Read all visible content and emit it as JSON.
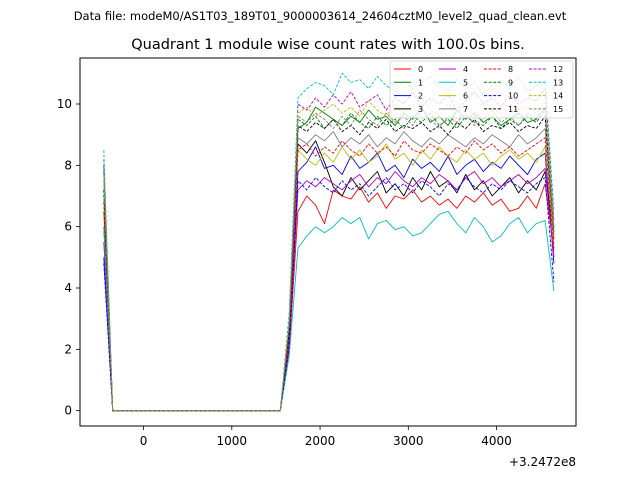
{
  "chart_data": {
    "type": "line",
    "suptitle": "Data file: modeM0/AS1T03_189T01_9000003614_24604cztM0_level2_quad_clean.evt",
    "title": "Quadrant 1 module wise count rates with 100.0s bins.",
    "xlabel": "",
    "ylabel": "",
    "x_offset_label": "+3.2472e8",
    "xlim": [
      -720,
      4900
    ],
    "ylim": [
      -0.5,
      11.5
    ],
    "xticks": [
      0,
      1000,
      2000,
      3000,
      4000
    ],
    "yticks": [
      0,
      2,
      4,
      6,
      8,
      10
    ],
    "grid": false,
    "legend_position": "top-right",
    "legend_columns": 4,
    "x": [
      -450,
      -350,
      -250,
      -150,
      -50,
      50,
      150,
      250,
      350,
      450,
      550,
      650,
      750,
      850,
      950,
      1050,
      1150,
      1250,
      1350,
      1450,
      1550,
      1650,
      1750,
      1850,
      1950,
      2050,
      2150,
      2250,
      2350,
      2450,
      2550,
      2650,
      2750,
      2850,
      2950,
      3050,
      3150,
      3250,
      3350,
      3450,
      3550,
      3650,
      3750,
      3850,
      3950,
      4050,
      4150,
      4250,
      4350,
      4450,
      4550,
      4650
    ],
    "series": [
      {
        "name": "0",
        "color": "#ff0000",
        "dash": false,
        "values": [
          6.5,
          0,
          0,
          0,
          0,
          0,
          0,
          0,
          0,
          0,
          0,
          0,
          0,
          0,
          0,
          0,
          0,
          0,
          0,
          0,
          0,
          2.0,
          6.5,
          7.0,
          6.7,
          6.1,
          7.2,
          7.0,
          6.9,
          7.3,
          6.8,
          7.1,
          6.6,
          7.0,
          6.9,
          7.2,
          6.8,
          7.0,
          6.7,
          6.9,
          6.6,
          7.0,
          6.8,
          7.1,
          6.7,
          6.9,
          6.5,
          6.6,
          7.0,
          6.6,
          7.4,
          5.2
        ]
      },
      {
        "name": "1",
        "color": "#008000",
        "dash": false,
        "values": [
          8.0,
          0,
          0,
          0,
          0,
          0,
          0,
          0,
          0,
          0,
          0,
          0,
          0,
          0,
          0,
          0,
          0,
          0,
          0,
          0,
          0,
          2.8,
          9.2,
          9.4,
          9.9,
          9.7,
          9.5,
          9.3,
          9.6,
          9.4,
          9.8,
          9.5,
          9.6,
          9.3,
          9.7,
          9.5,
          9.9,
          9.4,
          9.6,
          9.3,
          9.8,
          9.5,
          9.7,
          9.4,
          9.6,
          9.3,
          9.5,
          9.7,
          9.4,
          9.5,
          9.9,
          6.0
        ]
      },
      {
        "name": "2",
        "color": "#0000ff",
        "dash": false,
        "values": [
          5.0,
          0,
          0,
          0,
          0,
          0,
          0,
          0,
          0,
          0,
          0,
          0,
          0,
          0,
          0,
          0,
          0,
          0,
          0,
          0,
          0,
          2.3,
          7.8,
          8.1,
          8.6,
          7.9,
          8.0,
          7.7,
          8.3,
          7.9,
          8.1,
          8.4,
          7.8,
          8.0,
          7.6,
          8.2,
          7.9,
          8.1,
          7.8,
          8.3,
          7.7,
          8.0,
          8.2,
          7.8,
          8.1,
          7.9,
          8.3,
          8.0,
          7.7,
          8.2,
          8.4,
          4.8
        ]
      },
      {
        "name": "3",
        "color": "#000000",
        "dash": false,
        "values": [
          6.0,
          0,
          0,
          0,
          0,
          0,
          0,
          0,
          0,
          0,
          0,
          0,
          0,
          0,
          0,
          0,
          0,
          0,
          0,
          0,
          0,
          2.4,
          8.7,
          8.4,
          8.8,
          8.1,
          7.3,
          7.0,
          7.6,
          7.2,
          7.5,
          7.8,
          7.1,
          7.4,
          7.0,
          7.6,
          7.2,
          7.8,
          7.3,
          7.5,
          7.1,
          7.7,
          7.2,
          7.5,
          7.0,
          7.3,
          7.6,
          7.1,
          7.5,
          7.2,
          7.8,
          5.6
        ]
      },
      {
        "name": "4",
        "color": "#bf00bf",
        "dash": false,
        "values": [
          5.5,
          0,
          0,
          0,
          0,
          0,
          0,
          0,
          0,
          0,
          0,
          0,
          0,
          0,
          0,
          0,
          0,
          0,
          0,
          0,
          0,
          2.2,
          7.2,
          7.5,
          7.3,
          7.6,
          7.4,
          7.2,
          7.5,
          7.7,
          7.3,
          7.6,
          7.4,
          7.8,
          7.5,
          7.3,
          7.6,
          7.4,
          7.7,
          7.5,
          7.2,
          7.6,
          7.8,
          7.4,
          7.6,
          7.3,
          7.5,
          7.7,
          7.4,
          7.6,
          7.9,
          5.0
        ]
      },
      {
        "name": "5",
        "color": "#00bfbf",
        "dash": false,
        "values": [
          6.0,
          0,
          0,
          0,
          0,
          0,
          0,
          0,
          0,
          0,
          0,
          0,
          0,
          0,
          0,
          0,
          0,
          0,
          0,
          0,
          0,
          1.8,
          5.3,
          5.7,
          6.0,
          5.8,
          6.0,
          6.3,
          6.1,
          6.3,
          5.6,
          6.1,
          6.2,
          5.9,
          6.0,
          5.7,
          5.8,
          6.1,
          6.4,
          6.5,
          6.1,
          5.8,
          6.3,
          6.0,
          5.5,
          5.7,
          6.1,
          6.3,
          5.8,
          6.1,
          6.2,
          3.9
        ]
      },
      {
        "name": "6",
        "color": "#bfbf00",
        "dash": false,
        "values": [
          7.0,
          0,
          0,
          0,
          0,
          0,
          0,
          0,
          0,
          0,
          0,
          0,
          0,
          0,
          0,
          0,
          0,
          0,
          0,
          0,
          0,
          2.5,
          8.5,
          8.2,
          8.0,
          8.4,
          8.1,
          8.6,
          8.2,
          8.5,
          8.1,
          8.3,
          8.7,
          8.2,
          8.4,
          8.0,
          8.5,
          8.2,
          8.6,
          8.3,
          8.1,
          8.5,
          8.2,
          8.4,
          8.0,
          8.3,
          8.5,
          8.2,
          8.4,
          8.1,
          8.6,
          5.4
        ]
      },
      {
        "name": "7",
        "color": "#808080",
        "dash": false,
        "values": [
          7.5,
          0,
          0,
          0,
          0,
          0,
          0,
          0,
          0,
          0,
          0,
          0,
          0,
          0,
          0,
          0,
          0,
          0,
          0,
          0,
          0,
          2.6,
          8.9,
          8.7,
          9.0,
          8.8,
          9.1,
          8.6,
          8.9,
          8.7,
          9.0,
          8.6,
          8.9,
          8.7,
          9.1,
          8.8,
          8.6,
          8.9,
          8.7,
          9.0,
          8.8,
          8.6,
          8.9,
          8.7,
          9.0,
          8.8,
          8.6,
          9.0,
          8.7,
          8.9,
          9.2,
          5.7
        ]
      },
      {
        "name": "8",
        "color": "#ff0000",
        "dash": true,
        "values": [
          6.8,
          0,
          0,
          0,
          0,
          0,
          0,
          0,
          0,
          0,
          0,
          0,
          0,
          0,
          0,
          0,
          0,
          0,
          0,
          0,
          0,
          2.5,
          8.5,
          8.7,
          8.3,
          8.6,
          8.4,
          8.8,
          8.5,
          8.3,
          8.7,
          8.4,
          8.6,
          8.3,
          8.8,
          8.5,
          8.4,
          8.7,
          8.5,
          8.3,
          8.6,
          8.4,
          8.8,
          8.5,
          8.7,
          8.4,
          8.6,
          8.3,
          8.5,
          8.7,
          8.9,
          5.3
        ]
      },
      {
        "name": "9",
        "color": "#008000",
        "dash": true,
        "values": [
          7.8,
          0,
          0,
          0,
          0,
          0,
          0,
          0,
          0,
          0,
          0,
          0,
          0,
          0,
          0,
          0,
          0,
          0,
          0,
          0,
          0,
          2.7,
          9.5,
          9.3,
          9.6,
          9.2,
          9.5,
          9.3,
          9.7,
          9.4,
          9.2,
          9.6,
          9.3,
          9.5,
          9.2,
          9.6,
          9.4,
          9.7,
          9.3,
          9.5,
          9.2,
          9.6,
          9.4,
          9.3,
          9.6,
          9.2,
          9.5,
          9.3,
          9.6,
          9.4,
          9.8,
          5.8
        ]
      },
      {
        "name": "10",
        "color": "#0000ff",
        "dash": true,
        "values": [
          4.8,
          0,
          0,
          0,
          0,
          0,
          0,
          0,
          0,
          0,
          0,
          0,
          0,
          0,
          0,
          0,
          0,
          0,
          0,
          0,
          0,
          2.1,
          7.5,
          7.2,
          7.6,
          7.3,
          7.1,
          7.5,
          7.2,
          7.4,
          7.0,
          7.3,
          7.6,
          7.2,
          7.4,
          7.1,
          7.5,
          7.3,
          7.0,
          7.4,
          7.2,
          7.6,
          7.3,
          7.1,
          7.4,
          7.2,
          7.5,
          7.3,
          7.1,
          7.4,
          7.6,
          4.2
        ]
      },
      {
        "name": "11",
        "color": "#000000",
        "dash": true,
        "values": [
          7.2,
          0,
          0,
          0,
          0,
          0,
          0,
          0,
          0,
          0,
          0,
          0,
          0,
          0,
          0,
          0,
          0,
          0,
          0,
          0,
          0,
          2.6,
          9.3,
          9.1,
          9.4,
          9.2,
          9.5,
          9.1,
          9.3,
          9.0,
          9.4,
          9.2,
          9.5,
          9.1,
          9.3,
          9.2,
          9.4,
          9.1,
          9.3,
          9.0,
          9.4,
          9.2,
          9.5,
          9.1,
          9.3,
          9.2,
          9.4,
          9.1,
          9.3,
          9.2,
          9.6,
          5.9
        ]
      },
      {
        "name": "12",
        "color": "#bf00bf",
        "dash": true,
        "values": [
          8.2,
          0,
          0,
          0,
          0,
          0,
          0,
          0,
          0,
          0,
          0,
          0,
          0,
          0,
          0,
          0,
          0,
          0,
          0,
          0,
          0,
          3.0,
          10.0,
          9.8,
          10.2,
          9.9,
          10.3,
          10.0,
          10.4,
          9.9,
          10.1,
          10.3,
          9.8,
          10.2,
          10.0,
          10.4,
          9.9,
          10.2,
          10.0,
          10.3,
          9.8,
          10.1,
          10.4,
          10.0,
          10.2,
          9.9,
          10.3,
          10.0,
          10.2,
          10.1,
          10.5,
          6.2
        ]
      },
      {
        "name": "13",
        "color": "#00bfbf",
        "dash": true,
        "values": [
          8.5,
          0,
          0,
          0,
          0,
          0,
          0,
          0,
          0,
          0,
          0,
          0,
          0,
          0,
          0,
          0,
          0,
          0,
          0,
          0,
          0,
          3.2,
          10.2,
          10.5,
          10.7,
          10.6,
          10.3,
          11.0,
          10.7,
          10.8,
          10.5,
          10.9,
          10.6,
          10.4,
          10.8,
          10.5,
          10.7,
          10.9,
          10.6,
          10.4,
          10.8,
          10.5,
          10.7,
          10.3,
          10.6,
          10.8,
          10.5,
          10.9,
          10.4,
          10.6,
          10.8,
          6.5
        ]
      },
      {
        "name": "14",
        "color": "#bfbf00",
        "dash": true,
        "values": [
          7.6,
          0,
          0,
          0,
          0,
          0,
          0,
          0,
          0,
          0,
          0,
          0,
          0,
          0,
          0,
          0,
          0,
          0,
          0,
          0,
          0,
          2.9,
          9.7,
          9.9,
          9.6,
          9.8,
          10.0,
          9.7,
          9.9,
          9.6,
          10.1,
          9.8,
          9.6,
          10.0,
          9.7,
          9.9,
          10.2,
          9.8,
          9.6,
          10.0,
          9.7,
          9.9,
          9.6,
          10.1,
          9.8,
          9.7,
          10.0,
          9.8,
          9.9,
          9.7,
          10.1,
          6.0
        ]
      },
      {
        "name": "15",
        "color": "#808080",
        "dash": true,
        "values": [
          7.7,
          0,
          0,
          0,
          0,
          0,
          0,
          0,
          0,
          0,
          0,
          0,
          0,
          0,
          0,
          0,
          0,
          0,
          0,
          0,
          0,
          2.8,
          9.6,
          9.4,
          9.7,
          9.5,
          9.2,
          9.6,
          9.3,
          9.8,
          9.5,
          9.3,
          9.7,
          9.4,
          9.6,
          9.3,
          9.8,
          9.5,
          9.2,
          9.6,
          9.4,
          9.7,
          9.3,
          9.5,
          9.8,
          9.4,
          9.6,
          9.3,
          9.7,
          9.5,
          9.9,
          5.9
        ]
      }
    ]
  }
}
